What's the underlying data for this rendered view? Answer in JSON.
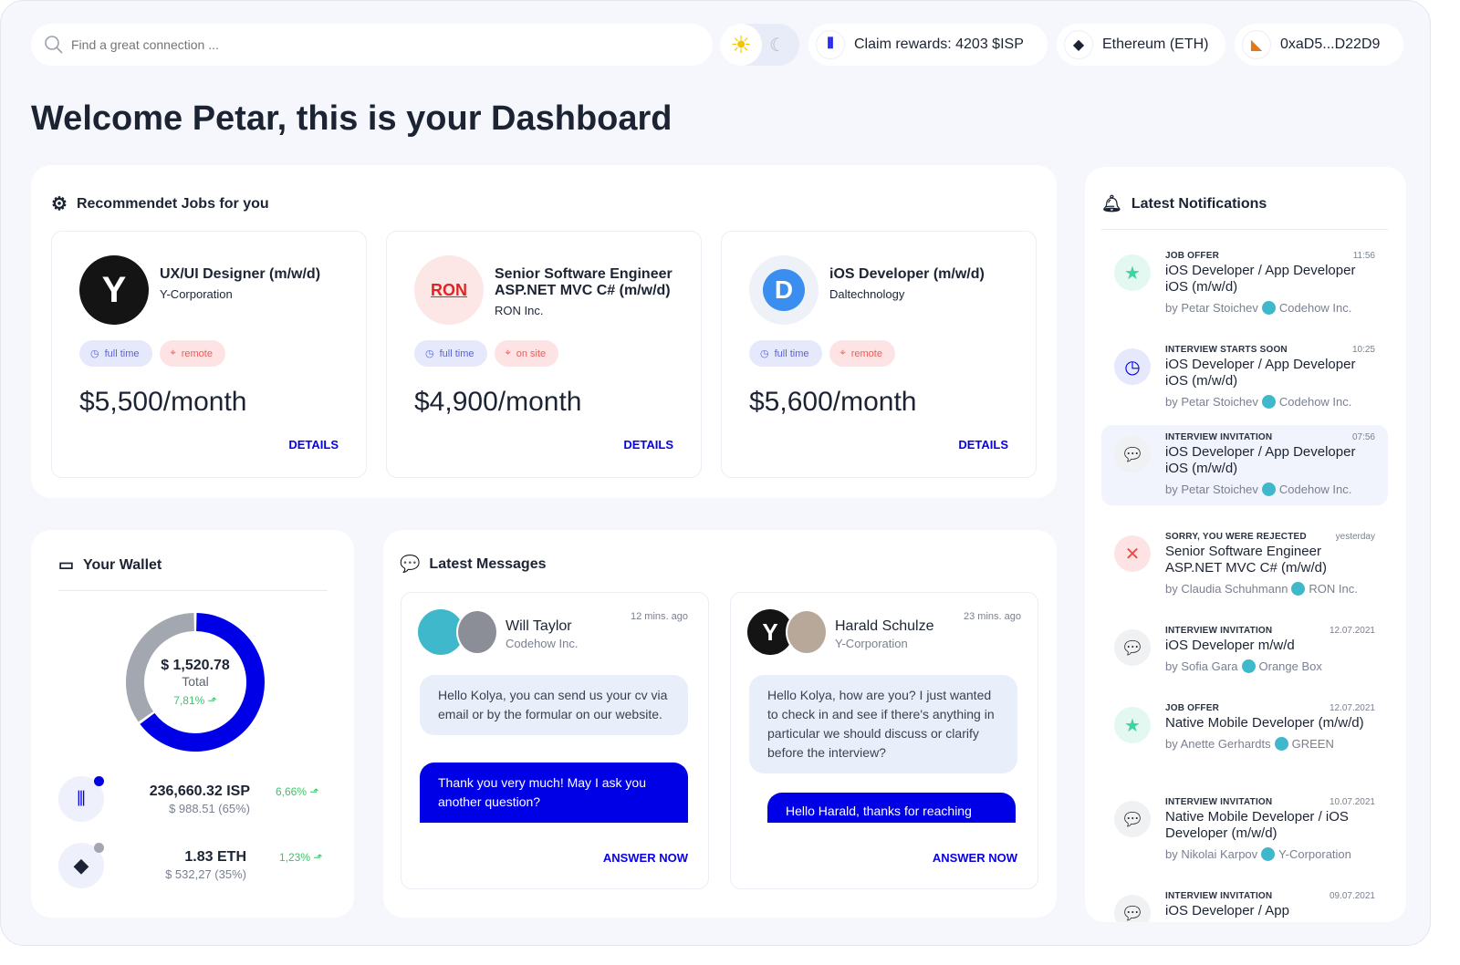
{
  "header": {
    "search_placeholder": "Find a great connection ...",
    "claim": "Claim rewards: 4203 $ISP",
    "network": "Ethereum (ETH)",
    "wallet": "0xaD5...D22D9"
  },
  "page_title": "Welcome Petar, this is your Dashboard",
  "jobs": {
    "title": "Recommendet Jobs for you",
    "items": [
      {
        "title": "UX/UI Designer (m/w/d)",
        "company": "Y-Corporation",
        "type": "full time",
        "location": "remote",
        "salary": "$5,500/month",
        "details": "DETAILS",
        "logo": "Y"
      },
      {
        "title": "Senior Software Engineer ASP.NET MVC C# (m/w/d)",
        "company": "RON Inc.",
        "type": "full time",
        "location": "on site",
        "salary": "$4,900/month",
        "details": "DETAILS",
        "logo": "RON"
      },
      {
        "title": "iOS Developer (m/w/d)",
        "company": "Daltechnology",
        "type": "full time",
        "location": "remote",
        "salary": "$5,600/month",
        "details": "DETAILS",
        "logo": "D"
      }
    ]
  },
  "wallet": {
    "title": "Your Wallet",
    "total": "$ 1,520.78",
    "total_label": "Total",
    "change": "7,81%",
    "allocation": [
      {
        "asset": "ISP",
        "percent": 65,
        "color": "#0000e6"
      },
      {
        "asset": "ETH",
        "percent": 35,
        "color": "#a3a8b0"
      }
    ],
    "assets": [
      {
        "amount": "236,660.32 ISP",
        "value": "$ 988.51 (65%)",
        "change": "6,66%"
      },
      {
        "amount": "1.83 ETH",
        "value": "$ 532,27 (35%)",
        "change": "1,23%"
      }
    ]
  },
  "messages": {
    "title": "Latest Messages",
    "items": [
      {
        "name": "Will Taylor",
        "company": "Codehow Inc.",
        "time": "12 mins. ago",
        "incoming": "Hello Kolya, you can send us your cv via email or by the formular on our website.",
        "outgoing": "Thank you very much! May I ask you another question?",
        "action": "ANSWER NOW"
      },
      {
        "name": "Harald Schulze",
        "company": "Y-Corporation",
        "time": "23 mins. ago",
        "incoming": "Hello Kolya, how are you? I just wanted to check in and see if there's anything in particular we should discuss or clarify before the interview?",
        "outgoing": "Hello Harald, thanks for reaching",
        "action": "ANSWER NOW"
      }
    ]
  },
  "notifications": {
    "title": "Latest Notifications",
    "items": [
      {
        "kind": "JOB OFFER",
        "time": "11:56",
        "title": "iOS Developer / App Developer iOS (m/w/d)",
        "by": "by Petar Stoichev",
        "company": "Codehow Inc.",
        "icon": "star"
      },
      {
        "kind": "INTERVIEW STARTS SOON",
        "time": "10:25",
        "title": "iOS Developer / App Developer iOS (m/w/d)",
        "by": "by Petar Stoichev",
        "company": "Codehow Inc.",
        "icon": "clock"
      },
      {
        "kind": "INTERVIEW INVITATION",
        "time": "07:56",
        "title": "iOS Developer / App Developer iOS (m/w/d)",
        "by": "by Petar Stoichev",
        "company": "Codehow Inc.",
        "icon": "chat"
      },
      {
        "kind": "SORRY, YOU WERE REJECTED",
        "time": "yesterday",
        "title": "Senior Software Engineer ASP.NET MVC C# (m/w/d)",
        "by": "by Claudia Schuhmann",
        "company": "RON Inc.",
        "icon": "x"
      },
      {
        "kind": "INTERVIEW INVITATION",
        "time": "12.07.2021",
        "title": "iOS Developer m/w/d",
        "by": "by Sofia Gara",
        "company": "Orange Box",
        "icon": "chat"
      },
      {
        "kind": "JOB OFFER",
        "time": "12.07.2021",
        "title": "Native Mobile Developer (m/w/d)",
        "by": "by Anette Gerhardts",
        "company": "GREEN",
        "icon": "star"
      },
      {
        "kind": "INTERVIEW INVITATION",
        "time": "10.07.2021",
        "title": "Native Mobile Developer / iOS Developer (m/w/d)",
        "by": "by Nikolai Karpov",
        "company": "Y-Corporation",
        "icon": "chat"
      },
      {
        "kind": "INTERVIEW INVITATION",
        "time": "09.07.2021",
        "title": "iOS Developer / App",
        "by": "",
        "company": "",
        "icon": "chat"
      }
    ]
  }
}
